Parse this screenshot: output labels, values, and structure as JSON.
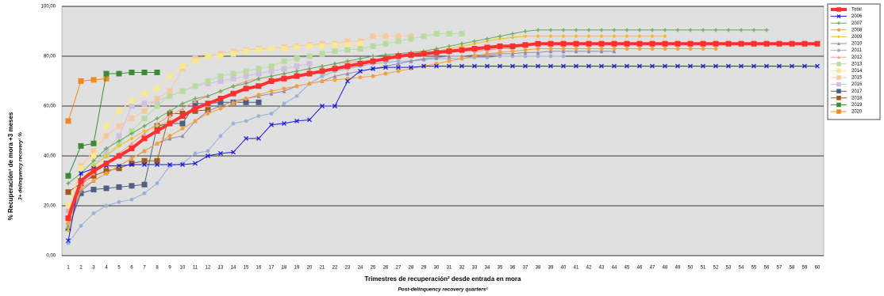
{
  "chart_data": {
    "type": "line",
    "y_label": "% Recuperación¹ de mora +3 meses",
    "y_label_en": "3+ delinquency recovery¹ %",
    "x_label": "Trimestres de recuperación² desde entrada en mora",
    "x_label_en": "Post-delinquency recovery quarters²",
    "ylim": [
      0,
      100
    ],
    "yticks": [
      {
        "value": 0,
        "label": "0,00"
      },
      {
        "value": 20,
        "label": "20,00"
      },
      {
        "value": 40,
        "label": "40,00"
      },
      {
        "value": 60,
        "label": "60,00"
      },
      {
        "value": 80,
        "label": "80,00"
      },
      {
        "value": 100,
        "label": "100,00"
      }
    ],
    "grid": true,
    "legend": "right",
    "background": "#e0e0e0",
    "categories": [
      "1",
      "2",
      "3",
      "4",
      "5",
      "6",
      "7",
      "8",
      "9",
      "10",
      "11",
      "12",
      "13",
      "14",
      "15",
      "16",
      "17",
      "18",
      "19",
      "20",
      "21",
      "22",
      "23",
      "24",
      "25",
      "26",
      "27",
      "28",
      "29",
      "30",
      "31",
      "32",
      "33",
      "34",
      "35",
      "36",
      "37",
      "38",
      "39",
      "40",
      "41",
      "42",
      "43",
      "44",
      "45",
      "46",
      "47",
      "48",
      "49",
      "50",
      "51",
      "52",
      "53",
      "54",
      "55",
      "56",
      "57",
      "58",
      "59",
      "60"
    ],
    "series": [
      {
        "name": "Total",
        "color": "#ff3030",
        "marker": "square",
        "line_width": 4,
        "values": [
          15,
          30,
          34,
          37,
          40,
          43,
          47,
          50,
          53,
          56,
          59,
          61,
          63,
          65,
          67,
          68,
          70,
          71,
          72,
          73,
          74,
          75,
          76,
          77,
          78,
          79,
          80,
          80.5,
          81,
          81.5,
          82,
          82.5,
          83,
          83.5,
          84,
          84,
          84.5,
          85,
          85,
          85,
          85,
          85,
          85,
          85,
          85,
          85,
          85,
          85,
          85,
          85,
          85,
          85,
          85,
          85,
          85,
          85,
          85,
          85,
          85,
          85
        ]
      },
      {
        "name": "2006",
        "color": "#1a1ae0",
        "marker": "x",
        "line_width": 1,
        "values": [
          6,
          33,
          35,
          36,
          36,
          36.5,
          36.5,
          36.5,
          36.5,
          36.5,
          37,
          40,
          41,
          41.5,
          47,
          47,
          52.5,
          53,
          54,
          54.5,
          60,
          60,
          70,
          74,
          75,
          75.5,
          75.5,
          75.5,
          76,
          76,
          76,
          76,
          76,
          76,
          76,
          76,
          76,
          76,
          76,
          76,
          76,
          76,
          76,
          76,
          76,
          76,
          76,
          76,
          76,
          76,
          76,
          76,
          76,
          76,
          76,
          76,
          76,
          76,
          76,
          76
        ]
      },
      {
        "name": "2007",
        "color": "#6aaa5a",
        "marker": "plus",
        "line_width": 1,
        "values": [
          29,
          33,
          38,
          43,
          46,
          49,
          52,
          55,
          58,
          61,
          63,
          64,
          66,
          68,
          69,
          71,
          72,
          73,
          74,
          75,
          76,
          77,
          78,
          79,
          80,
          80.5,
          81,
          81.5,
          82,
          83,
          84,
          85,
          86,
          87,
          88,
          89,
          90,
          90.5,
          90.5,
          90.5,
          90.5,
          90.5,
          90.5,
          90.5,
          90.5,
          90.5,
          90.5,
          90.5,
          90.5,
          90.5,
          90.5,
          90.5,
          90.5,
          90.5,
          90.5,
          90.5,
          null,
          null,
          null,
          null
        ]
      },
      {
        "name": "2008",
        "color": "#f5a040",
        "marker": "circle",
        "line_width": 1,
        "values": [
          13,
          27,
          30,
          33,
          36,
          39,
          42,
          45,
          48,
          51,
          54,
          57,
          59,
          61,
          63,
          64.5,
          66,
          67,
          68,
          69,
          70,
          70.5,
          71,
          71.5,
          72,
          73,
          74,
          75,
          76,
          77,
          78,
          79,
          80,
          81,
          81.5,
          82,
          82.5,
          83,
          83,
          83,
          83,
          83,
          83,
          83,
          83,
          83,
          83,
          83,
          83,
          83,
          83,
          83,
          null,
          null,
          null,
          null,
          null,
          null,
          null,
          null
        ]
      },
      {
        "name": "2009",
        "color": "#f0c020",
        "marker": "diamond",
        "line_width": 1,
        "values": [
          10,
          30,
          36,
          40,
          44,
          47,
          50,
          52,
          54,
          56,
          59,
          61,
          63,
          65,
          67,
          68,
          70,
          71,
          72,
          73,
          74,
          75,
          76,
          77,
          78,
          79,
          80,
          80.5,
          81,
          82,
          83,
          84,
          85,
          86,
          87,
          87.5,
          88,
          88,
          88,
          88,
          88,
          88,
          88,
          88,
          88,
          88,
          88,
          88,
          null,
          null,
          null,
          null,
          null,
          null,
          null,
          null,
          null,
          null,
          null,
          null
        ]
      },
      {
        "name": "2010",
        "color": "#9a8aa8",
        "marker": "triangle",
        "line_width": 1,
        "values": [
          12,
          26,
          30,
          33,
          36,
          39,
          42,
          45,
          47,
          48,
          54,
          58,
          60,
          62,
          63,
          64,
          65,
          66,
          68,
          69,
          70,
          72,
          73,
          74,
          75,
          76,
          77,
          78,
          79,
          79.5,
          80,
          80,
          80.5,
          80.5,
          81,
          81,
          81.5,
          81.5,
          82,
          82,
          82,
          82,
          82,
          82,
          null,
          null,
          null,
          null,
          null,
          null,
          null,
          null,
          null,
          null,
          null,
          null,
          null,
          null,
          null,
          null
        ]
      },
      {
        "name": "2011",
        "color": "#9ab0d8",
        "marker": "star",
        "line_width": 1,
        "values": [
          5,
          12,
          17,
          20,
          21.5,
          22.5,
          25,
          29,
          36,
          37,
          41,
          42,
          48,
          53,
          54,
          56,
          57,
          61,
          64,
          69,
          72,
          74,
          75,
          76,
          77,
          77.5,
          78,
          78,
          78.5,
          79,
          79,
          79,
          79.5,
          79.5,
          80,
          80,
          80,
          80,
          80,
          80,
          null,
          null,
          null,
          null,
          null,
          null,
          null,
          null,
          null,
          null,
          null,
          null,
          null,
          null,
          null,
          null,
          null,
          null,
          null,
          null
        ]
      },
      {
        "name": "2012",
        "color": "#f0a090",
        "marker": "triangle",
        "line_width": 1,
        "values": [
          18,
          28,
          33,
          37,
          41,
          45,
          49,
          53,
          56,
          59,
          62,
          64,
          66,
          68,
          70,
          71,
          72,
          73,
          74,
          75,
          76,
          77,
          77.5,
          78,
          78.5,
          79,
          79.5,
          80,
          80.5,
          81,
          81.5,
          82,
          82,
          82.5,
          83,
          83,
          null,
          null,
          null,
          null,
          null,
          null,
          null,
          null,
          null,
          null,
          null,
          null,
          null,
          null,
          null,
          null,
          null,
          null,
          null,
          null,
          null,
          null,
          null,
          null
        ]
      },
      {
        "name": "2013",
        "color": "#b8dca0",
        "marker": "square",
        "line_width": 1,
        "values": [
          12,
          30,
          36,
          40,
          45,
          50,
          55,
          60,
          64,
          66,
          68,
          70,
          72,
          73,
          74,
          75,
          76,
          78,
          79,
          80,
          81,
          82,
          82.5,
          83,
          84,
          85,
          86,
          87,
          88,
          89,
          89,
          89,
          null,
          null,
          null,
          null,
          null,
          null,
          null,
          null,
          null,
          null,
          null,
          null,
          null,
          null,
          null,
          null,
          null,
          null,
          null,
          null,
          null,
          null,
          null,
          null,
          null,
          null,
          null,
          null
        ]
      },
      {
        "name": "2014",
        "color": "#f8e890",
        "marker": "square",
        "line_width": 1,
        "values": [
          20,
          35,
          40,
          52,
          58,
          62,
          65,
          67,
          72,
          76,
          78,
          80,
          80,
          81,
          82,
          82.5,
          83,
          83,
          83.5,
          84,
          84,
          84.5,
          84.5,
          85,
          null,
          null,
          null,
          null,
          null,
          null,
          null,
          null,
          null,
          null,
          null,
          null,
          null,
          null,
          null,
          null,
          null,
          null,
          null,
          null,
          null,
          null,
          null,
          null,
          null,
          null,
          null,
          null,
          null,
          null,
          null,
          null,
          null,
          null,
          null,
          null
        ]
      },
      {
        "name": "2015",
        "color": "#f8c8a0",
        "marker": "square",
        "line_width": 1,
        "values": [
          15,
          36,
          42,
          48,
          52,
          55,
          58,
          63,
          66,
          75,
          79,
          80,
          81,
          82,
          82.5,
          83,
          83,
          83.5,
          84,
          84.5,
          85,
          85,
          86,
          86,
          88,
          88,
          88,
          88,
          null,
          null,
          null,
          null,
          null,
          null,
          null,
          null,
          null,
          null,
          null,
          null,
          null,
          null,
          null,
          null,
          null,
          null,
          null,
          null,
          null,
          null,
          null,
          null,
          null,
          null,
          null,
          null,
          null,
          null,
          null,
          null
        ]
      },
      {
        "name": "2016",
        "color": "#d0c0e0",
        "marker": "square",
        "line_width": 1,
        "values": [
          18,
          30,
          36,
          42,
          48,
          60,
          61,
          62,
          64,
          66,
          68,
          69,
          70,
          71,
          72,
          73,
          74,
          75,
          76,
          77,
          null,
          null,
          null,
          null,
          null,
          null,
          null,
          null,
          null,
          null,
          null,
          null,
          null,
          null,
          null,
          null,
          null,
          null,
          null,
          null,
          null,
          null,
          null,
          null,
          null,
          null,
          null,
          null,
          null,
          null,
          null,
          null,
          null,
          null,
          null,
          null,
          null,
          null,
          null,
          null
        ]
      },
      {
        "name": "2017",
        "color": "#506080",
        "marker": "square",
        "line_width": 1,
        "values": [
          11,
          25,
          26.5,
          27,
          27.5,
          28,
          28.5,
          52,
          53,
          53,
          61,
          61,
          61.5,
          61.5,
          61.5,
          61.5,
          null,
          null,
          null,
          null,
          null,
          null,
          null,
          null,
          null,
          null,
          null,
          null,
          null,
          null,
          null,
          null,
          null,
          null,
          null,
          null,
          null,
          null,
          null,
          null,
          null,
          null,
          null,
          null,
          null,
          null,
          null,
          null,
          null,
          null,
          null,
          null,
          null,
          null,
          null,
          null,
          null,
          null,
          null,
          null
        ]
      },
      {
        "name": "2018",
        "color": "#a05a20",
        "marker": "square",
        "line_width": 1,
        "values": [
          25.5,
          29,
          32,
          34,
          35,
          37,
          38,
          38,
          57,
          57,
          58,
          58.5,
          null,
          null,
          null,
          null,
          null,
          null,
          null,
          null,
          null,
          null,
          null,
          null,
          null,
          null,
          null,
          null,
          null,
          null,
          null,
          null,
          null,
          null,
          null,
          null,
          null,
          null,
          null,
          null,
          null,
          null,
          null,
          null,
          null,
          null,
          null,
          null,
          null,
          null,
          null,
          null,
          null,
          null,
          null,
          null,
          null,
          null,
          null,
          null
        ]
      },
      {
        "name": "2019",
        "color": "#3a8a3a",
        "marker": "square",
        "line_width": 1,
        "values": [
          32,
          44,
          45,
          73,
          73,
          73.5,
          73.5,
          73.5,
          null,
          null,
          null,
          null,
          null,
          null,
          null,
          null,
          null,
          null,
          null,
          null,
          null,
          null,
          null,
          null,
          null,
          null,
          null,
          null,
          null,
          null,
          null,
          null,
          null,
          null,
          null,
          null,
          null,
          null,
          null,
          null,
          null,
          null,
          null,
          null,
          null,
          null,
          null,
          null,
          null,
          null,
          null,
          null,
          null,
          null,
          null,
          null,
          null,
          null,
          null,
          null
        ]
      },
      {
        "name": "2020",
        "color": "#f08a20",
        "marker": "square",
        "line_width": 1,
        "values": [
          54,
          70,
          70.5,
          71,
          null,
          null,
          null,
          null,
          null,
          null,
          null,
          null,
          null,
          null,
          null,
          null,
          null,
          null,
          null,
          null,
          null,
          null,
          null,
          null,
          null,
          null,
          null,
          null,
          null,
          null,
          null,
          null,
          null,
          null,
          null,
          null,
          null,
          null,
          null,
          null,
          null,
          null,
          null,
          null,
          null,
          null,
          null,
          null,
          null,
          null,
          null,
          null,
          null,
          null,
          null,
          null,
          null,
          null,
          null,
          null
        ]
      }
    ]
  }
}
